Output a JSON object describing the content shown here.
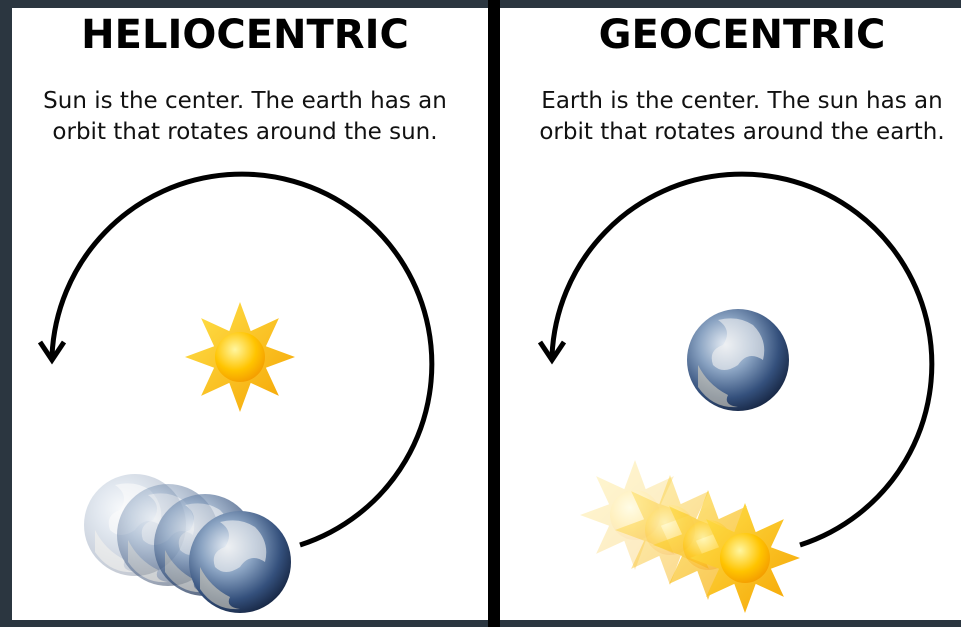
{
  "panels": [
    {
      "title": "HELIOCENTRIC",
      "caption": [
        "Sun is the center. The earth has an",
        "orbit that rotates around the sun."
      ]
    },
    {
      "title": "GEOCENTRIC",
      "caption": [
        "Earth is the center. The sun has an",
        "orbit that rotates around the earth."
      ]
    }
  ]
}
